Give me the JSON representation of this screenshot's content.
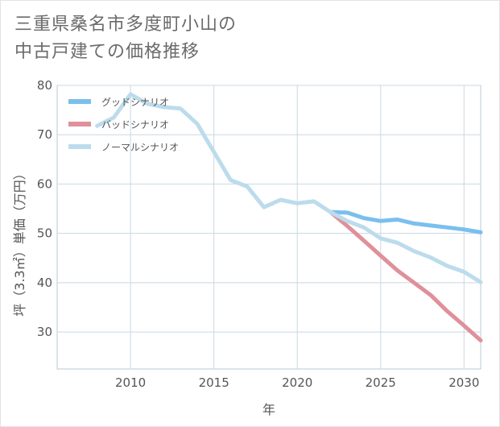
{
  "chart_data": {
    "type": "line",
    "title_lines": [
      "三重県桑名市多度町小山の",
      "中古戸建ての価格推移"
    ],
    "xlabel": "年",
    "ylabel": "坪（3.3㎡）単価（万円）",
    "xlim": [
      2005.6,
      2031.0
    ],
    "ylim": [
      22.5,
      80.0
    ],
    "x_ticks": [
      2010,
      2015,
      2020,
      2025,
      2030
    ],
    "y_ticks": [
      30,
      40,
      50,
      60,
      70,
      80
    ],
    "grid": true,
    "legend": "top-left",
    "series": [
      {
        "name": "グッドシナリオ",
        "color": "#7abfee",
        "points": [
          [
            2022,
            54.3
          ],
          [
            2023,
            54.2
          ],
          [
            2024,
            53.1
          ],
          [
            2025,
            52.5
          ],
          [
            2026,
            52.8
          ],
          [
            2027,
            52.0
          ],
          [
            2028,
            51.6
          ],
          [
            2029,
            51.2
          ],
          [
            2030,
            50.8
          ],
          [
            2031,
            50.2
          ]
        ]
      },
      {
        "name": "バッドシナリオ",
        "color": "#e0909a",
        "points": [
          [
            2022,
            54.3
          ],
          [
            2023,
            51.5
          ],
          [
            2024,
            48.5
          ],
          [
            2025,
            45.5
          ],
          [
            2026,
            42.5
          ],
          [
            2027,
            40.0
          ],
          [
            2028,
            37.5
          ],
          [
            2029,
            34.2
          ],
          [
            2030,
            31.3
          ],
          [
            2031,
            28.3
          ]
        ]
      },
      {
        "name": "ノーマルシナリオ",
        "color": "#bcdcec",
        "points": [
          [
            2008,
            71.8
          ],
          [
            2009,
            73.5
          ],
          [
            2010,
            78.2
          ],
          [
            2011,
            76.3
          ],
          [
            2012,
            75.6
          ],
          [
            2013,
            75.3
          ],
          [
            2014,
            72.2
          ],
          [
            2015,
            66.5
          ],
          [
            2016,
            60.8
          ],
          [
            2017,
            59.5
          ],
          [
            2018,
            55.3
          ],
          [
            2019,
            56.8
          ],
          [
            2020,
            56.1
          ],
          [
            2021,
            56.5
          ],
          [
            2022,
            54.3
          ],
          [
            2023,
            52.5
          ],
          [
            2024,
            51.2
          ],
          [
            2025,
            49.0
          ],
          [
            2026,
            48.1
          ],
          [
            2027,
            46.4
          ],
          [
            2028,
            45.1
          ],
          [
            2029,
            43.4
          ],
          [
            2030,
            42.2
          ],
          [
            2031,
            40.1
          ]
        ]
      }
    ]
  }
}
